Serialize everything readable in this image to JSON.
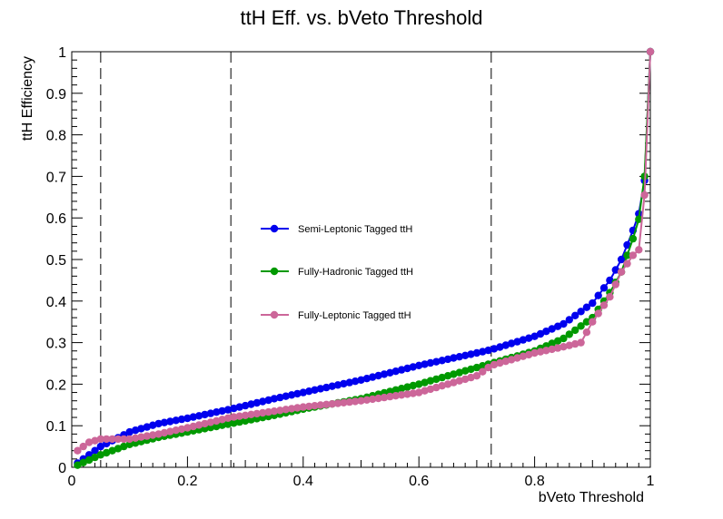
{
  "chart_data": {
    "type": "line",
    "title": "ttH Eff. vs. bVeto Threshold",
    "xlabel": "bVeto Threshold",
    "ylabel": "ttH Efficiency",
    "xlim": [
      0,
      1
    ],
    "ylim": [
      0,
      1
    ],
    "x_ticks": [
      "0",
      "0.2",
      "0.4",
      "0.6",
      "0.8",
      "1"
    ],
    "y_ticks": [
      "0",
      "0.1",
      "0.2",
      "0.3",
      "0.4",
      "0.5",
      "0.6",
      "0.7",
      "0.8",
      "0.9",
      "1"
    ],
    "grid": false,
    "legend_position": "center-left",
    "vertical_lines": [
      0.05,
      0.275,
      0.725
    ],
    "series": [
      {
        "name": "Semi-Leptonic Tagged ttH",
        "color": "#0000ee",
        "anchors": [
          [
            0.01,
            0.01
          ],
          [
            0.05,
            0.05
          ],
          [
            0.1,
            0.085
          ],
          [
            0.15,
            0.105
          ],
          [
            0.2,
            0.118
          ],
          [
            0.275,
            0.14
          ],
          [
            0.35,
            0.165
          ],
          [
            0.4,
            0.18
          ],
          [
            0.5,
            0.21
          ],
          [
            0.6,
            0.245
          ],
          [
            0.7,
            0.275
          ],
          [
            0.725,
            0.283
          ],
          [
            0.8,
            0.315
          ],
          [
            0.85,
            0.345
          ],
          [
            0.9,
            0.395
          ],
          [
            0.93,
            0.45
          ],
          [
            0.95,
            0.5
          ],
          [
            0.97,
            0.57
          ],
          [
            0.985,
            0.63
          ],
          [
            0.995,
            0.75
          ],
          [
            1.0,
            1.0
          ]
        ]
      },
      {
        "name": "Fully-Hadronic Tagged ttH",
        "color": "#009900",
        "anchors": [
          [
            0.01,
            0.005
          ],
          [
            0.05,
            0.03
          ],
          [
            0.1,
            0.055
          ],
          [
            0.15,
            0.072
          ],
          [
            0.2,
            0.085
          ],
          [
            0.275,
            0.105
          ],
          [
            0.35,
            0.125
          ],
          [
            0.4,
            0.14
          ],
          [
            0.5,
            0.165
          ],
          [
            0.6,
            0.2
          ],
          [
            0.7,
            0.24
          ],
          [
            0.725,
            0.25
          ],
          [
            0.8,
            0.28
          ],
          [
            0.85,
            0.31
          ],
          [
            0.9,
            0.36
          ],
          [
            0.93,
            0.42
          ],
          [
            0.95,
            0.47
          ],
          [
            0.97,
            0.55
          ],
          [
            0.985,
            0.62
          ],
          [
            0.995,
            0.78
          ],
          [
            1.0,
            1.0
          ]
        ]
      },
      {
        "name": "Fully-Leptonic Tagged ttH",
        "color": "#cc6699",
        "anchors": [
          [
            0.01,
            0.04
          ],
          [
            0.03,
            0.06
          ],
          [
            0.05,
            0.068
          ],
          [
            0.1,
            0.068
          ],
          [
            0.15,
            0.08
          ],
          [
            0.2,
            0.095
          ],
          [
            0.275,
            0.12
          ],
          [
            0.35,
            0.135
          ],
          [
            0.4,
            0.145
          ],
          [
            0.5,
            0.16
          ],
          [
            0.6,
            0.18
          ],
          [
            0.7,
            0.22
          ],
          [
            0.725,
            0.245
          ],
          [
            0.8,
            0.275
          ],
          [
            0.85,
            0.29
          ],
          [
            0.88,
            0.3
          ],
          [
            0.9,
            0.35
          ],
          [
            0.93,
            0.41
          ],
          [
            0.95,
            0.47
          ],
          [
            0.97,
            0.51
          ],
          [
            0.985,
            0.53
          ],
          [
            0.995,
            0.78
          ],
          [
            1.0,
            1.0
          ]
        ]
      }
    ]
  }
}
